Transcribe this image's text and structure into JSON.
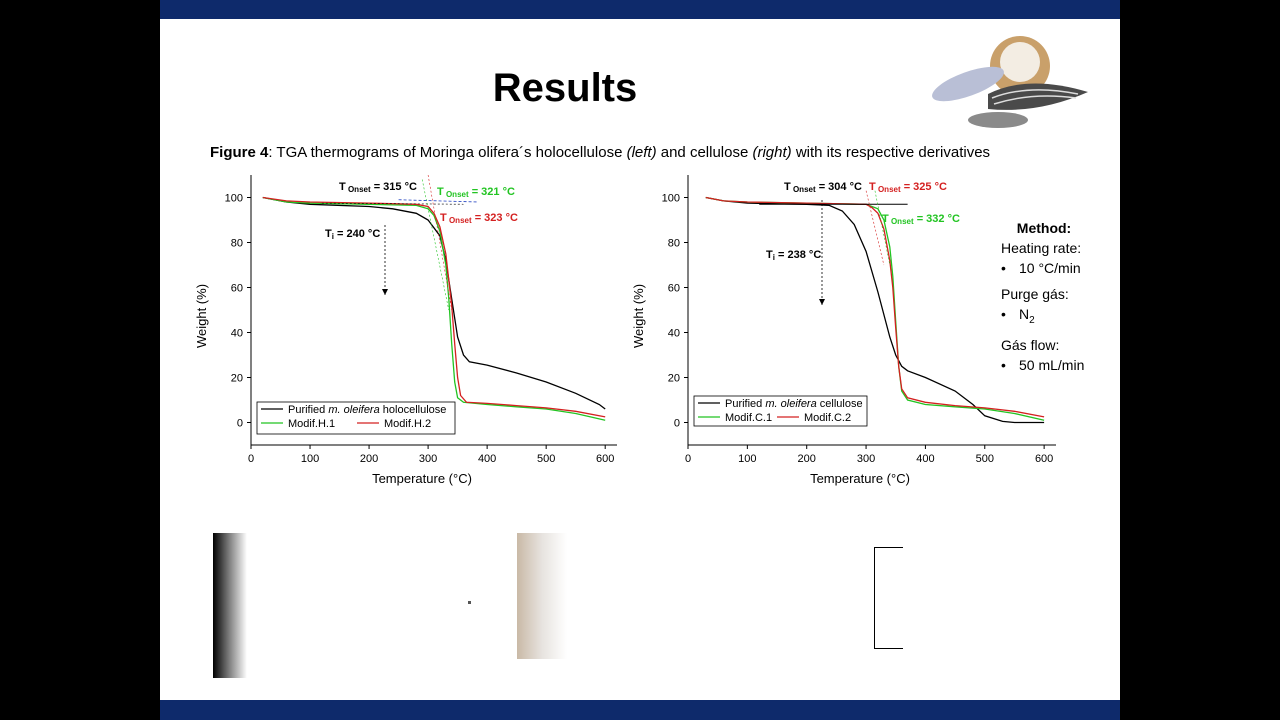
{
  "slide": {
    "title": "Results",
    "caption": {
      "label": "Figure 4",
      "part1": ": TGA thermograms of Moringa olifera´s holocellulose ",
      "left": "(left)",
      "part2": " and cellulose ",
      "right": "(right)",
      "part3": " with its respective derivatives"
    },
    "method": {
      "heading": "Method:",
      "heating_label": "Heating rate:",
      "heating_value": "10 °C/min",
      "purge_label": "Purge gás:",
      "purge_value": "N",
      "purge_sub": "2",
      "flow_label": "Gás flow:",
      "flow_value": "50 mL/min",
      "bullet": "•"
    },
    "colors": {
      "bar": "#0e2a6b",
      "black": "#000000",
      "green": "#22c422",
      "red": "#d42020"
    }
  },
  "chart_data": [
    {
      "type": "line",
      "xlabel": "Temperature (°C)",
      "ylabel": "Weight (%)",
      "xlim": [
        0,
        620
      ],
      "ylim": [
        -10,
        110
      ],
      "xticks": [
        0,
        100,
        200,
        300,
        400,
        500,
        600
      ],
      "yticks": [
        0,
        20,
        40,
        60,
        80,
        100
      ],
      "legend_position": "bottom-left",
      "legend": [
        {
          "pre": "Purified ",
          "ital": "m. oleifera",
          "post": " holocellulose"
        },
        {
          "pre": "Modif.H.1",
          "ital": "",
          "post": ""
        },
        {
          "pre": "Modif.H.2",
          "ital": "",
          "post": ""
        }
      ],
      "series": [
        {
          "name": "Purified m. oleifera holocellulose",
          "color": "#000000",
          "x": [
            20,
            60,
            100,
            200,
            240,
            280,
            300,
            320,
            330,
            340,
            350,
            360,
            370,
            400,
            450,
            500,
            550,
            590,
            600
          ],
          "y": [
            100,
            98,
            97,
            96,
            95,
            93,
            90,
            83,
            72,
            55,
            38,
            30,
            27,
            25.5,
            22,
            18,
            13,
            8,
            6
          ]
        },
        {
          "name": "Modif.H.1",
          "color": "#22c422",
          "x": [
            20,
            60,
            100,
            200,
            280,
            300,
            310,
            320,
            330,
            335,
            340,
            345,
            350,
            360,
            400,
            450,
            500,
            550,
            600
          ],
          "y": [
            100,
            98,
            97.5,
            97,
            96.5,
            95,
            92,
            85,
            70,
            55,
            35,
            18,
            11,
            9,
            8,
            7,
            6,
            4,
            1
          ]
        },
        {
          "name": "Modif.H.2",
          "color": "#d42020",
          "x": [
            20,
            60,
            100,
            200,
            280,
            300,
            310,
            320,
            330,
            340,
            345,
            350,
            355,
            365,
            400,
            450,
            500,
            550,
            600
          ],
          "y": [
            100,
            98.5,
            98,
            97.5,
            97,
            96,
            93,
            87,
            75,
            52,
            35,
            20,
            12,
            9,
            8.5,
            7.5,
            6.5,
            5,
            2.5
          ]
        }
      ],
      "annotations": [
        {
          "id": "ti",
          "main": "T",
          "sub": "i",
          "post": " = 240 °C",
          "color": "#000000"
        },
        {
          "id": "onset_black",
          "main": "T",
          "sub": " Onset",
          "post": " = 315 °C",
          "color": "#000000"
        },
        {
          "id": "onset_green",
          "main": "T",
          "sub": " Onset",
          "post": " = 321 °C",
          "color": "#22c422"
        },
        {
          "id": "onset_red",
          "main": "T",
          "sub": " Onset",
          "post": " = 323 °C",
          "color": "#d42020"
        }
      ]
    },
    {
      "type": "line",
      "xlabel": "Temperature (°C)",
      "ylabel": "Weight (%)",
      "xlim": [
        0,
        620
      ],
      "ylim": [
        -10,
        110
      ],
      "xticks": [
        0,
        100,
        200,
        300,
        400,
        500,
        600
      ],
      "yticks": [
        0,
        20,
        40,
        60,
        80,
        100
      ],
      "legend_position": "bottom-left",
      "legend": [
        {
          "pre": "Purified ",
          "ital": "m. oleifera",
          "post": " cellulose"
        },
        {
          "pre": "Modif.C.1",
          "ital": "",
          "post": ""
        },
        {
          "pre": "Modif.C.2",
          "ital": "",
          "post": ""
        }
      ],
      "series": [
        {
          "name": "Purified m. oleifera cellulose",
          "color": "#000000",
          "x": [
            30,
            60,
            100,
            200,
            238,
            260,
            280,
            300,
            320,
            340,
            350,
            360,
            370,
            400,
            450,
            480,
            500,
            530,
            550,
            600
          ],
          "y": [
            100,
            98.5,
            97.5,
            97,
            96.5,
            94,
            88,
            76,
            58,
            38,
            30,
            25,
            23,
            20,
            14,
            8,
            3,
            0.5,
            0,
            0
          ]
        },
        {
          "name": "Modif.C.1",
          "color": "#22c422",
          "x": [
            30,
            60,
            100,
            200,
            300,
            320,
            330,
            340,
            345,
            350,
            355,
            360,
            370,
            400,
            450,
            500,
            550,
            600
          ],
          "y": [
            100,
            98.5,
            98,
            97.5,
            97,
            95,
            90,
            78,
            65,
            45,
            25,
            14,
            10,
            8,
            7,
            6,
            4,
            1
          ]
        },
        {
          "name": "Modif.C.2",
          "color": "#d42020",
          "x": [
            30,
            60,
            100,
            200,
            300,
            310,
            320,
            330,
            340,
            345,
            350,
            355,
            360,
            370,
            400,
            450,
            500,
            550,
            600
          ],
          "y": [
            100,
            98.5,
            98,
            97.5,
            97,
            95.5,
            93,
            86,
            72,
            60,
            42,
            25,
            15,
            11,
            9,
            7.5,
            6.5,
            5,
            2.5
          ]
        }
      ],
      "annotations": [
        {
          "id": "ti",
          "main": "T",
          "sub": "i",
          "post": " = 238 °C",
          "color": "#000000"
        },
        {
          "id": "onset_black",
          "main": "T",
          "sub": " Onset",
          "post": " = 304 °C",
          "color": "#000000"
        },
        {
          "id": "onset_red",
          "main": "T",
          "sub": " Onset",
          "post": " = 325 °C",
          "color": "#d42020"
        },
        {
          "id": "onset_green",
          "main": "T",
          "sub": " Onset",
          "post": " = 332 °C",
          "color": "#22c422"
        }
      ]
    }
  ]
}
